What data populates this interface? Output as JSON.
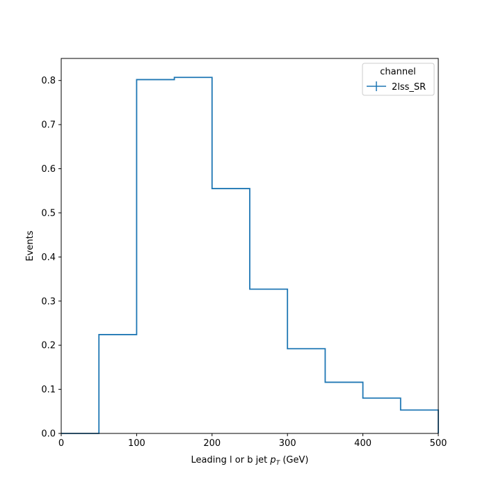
{
  "chart_data": {
    "type": "step",
    "title": "",
    "xlabel": {
      "prefix": "Leading l or b jet ",
      "var": "p",
      "sub": "T",
      "suffix": " (GeV)"
    },
    "ylabel": "Events",
    "xlim": [
      0,
      500
    ],
    "ylim": [
      0,
      0.85
    ],
    "xticks": [
      0,
      100,
      200,
      300,
      400,
      500
    ],
    "yticks": [
      0.0,
      0.1,
      0.2,
      0.3,
      0.4,
      0.5,
      0.6,
      0.7,
      0.8
    ],
    "bin_edges": [
      0,
      50,
      100,
      150,
      200,
      250,
      300,
      350,
      400,
      450,
      500
    ],
    "series": [
      {
        "name": "2lss_SR",
        "color": "#1f77b4",
        "values": [
          0.0,
          0.224,
          0.802,
          0.807,
          0.555,
          0.327,
          0.192,
          0.116,
          0.08,
          0.053
        ]
      }
    ],
    "legend": {
      "title": "channel",
      "location": "top-right"
    },
    "grid": false
  }
}
